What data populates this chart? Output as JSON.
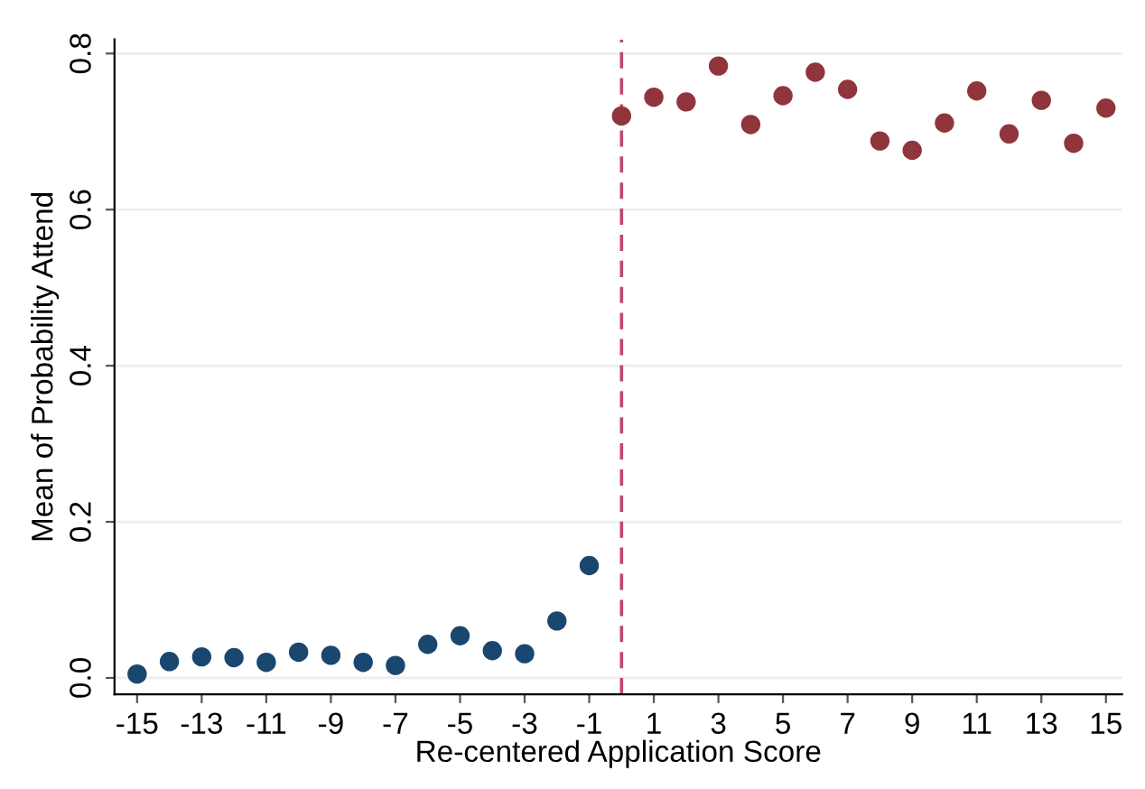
{
  "chart_data": {
    "type": "scatter",
    "xlabel": "Re-centered Application Score",
    "ylabel": "Mean of Probability Attend",
    "series": [
      {
        "color": "#1a476f",
        "x": [
          -15,
          -14,
          -13,
          -12,
          -11,
          -10,
          -9,
          -8,
          -7,
          -6,
          -5,
          -4,
          -3,
          -2,
          -1
        ],
        "values": [
          0.005,
          0.021,
          0.027,
          0.026,
          0.02,
          0.033,
          0.029,
          0.02,
          0.016,
          0.043,
          0.054,
          0.035,
          0.031,
          0.073,
          0.144
        ]
      },
      {
        "color": "#90353b",
        "x": [
          0,
          1,
          2,
          3,
          4,
          5,
          6,
          7,
          8,
          9,
          10,
          11,
          12,
          13,
          14,
          15
        ],
        "values": [
          0.72,
          0.744,
          0.738,
          0.784,
          0.709,
          0.746,
          0.776,
          0.754,
          0.688,
          0.676,
          0.711,
          0.752,
          0.697,
          0.74,
          0.685,
          0.73
        ]
      }
    ],
    "xlim": [
      -15.7,
      15.5
    ],
    "ylim": [
      -0.021,
      0.818
    ],
    "xticks": [
      -15,
      -13,
      -11,
      -9,
      -7,
      -5,
      -3,
      -1,
      1,
      3,
      5,
      7,
      9,
      11,
      13,
      15
    ],
    "yticks": [
      {
        "value": 0,
        "label": "0.0"
      },
      0.2,
      0.4,
      0.6,
      0.8
    ],
    "ref_lines": [
      {
        "axis": "x",
        "value": 0,
        "color": "#c0486e",
        "line_style": "dashed"
      }
    ],
    "grid": "y",
    "marker": "circle"
  }
}
